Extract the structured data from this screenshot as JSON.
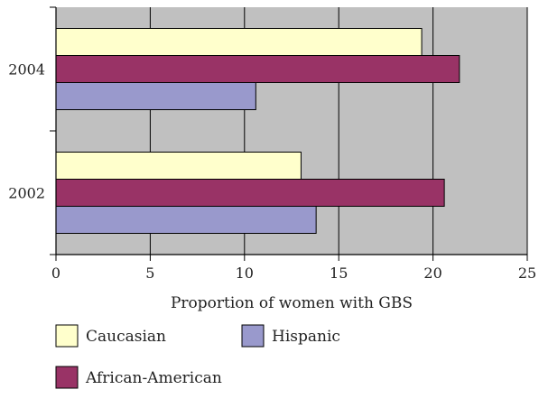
{
  "chart_data": {
    "type": "bar",
    "orientation": "horizontal",
    "categories": [
      "2002",
      "2004"
    ],
    "series": [
      {
        "name": "Caucasian",
        "values": [
          13.0,
          19.4
        ],
        "color": "#ffffcc"
      },
      {
        "name": "African-American",
        "values": [
          20.6,
          21.4
        ],
        "color": "#993366"
      },
      {
        "name": "Hispanic",
        "values": [
          13.8,
          10.6
        ],
        "color": "#9999cc"
      }
    ],
    "xlabel": "Proportion of women with GBS",
    "ylabel": "",
    "xlim": [
      0,
      25
    ],
    "xticks": [
      "0",
      "5",
      "10",
      "15",
      "20",
      "25"
    ],
    "grid": "vertical",
    "plot_background": "#c0c0c0",
    "legend_position": "bottom"
  }
}
